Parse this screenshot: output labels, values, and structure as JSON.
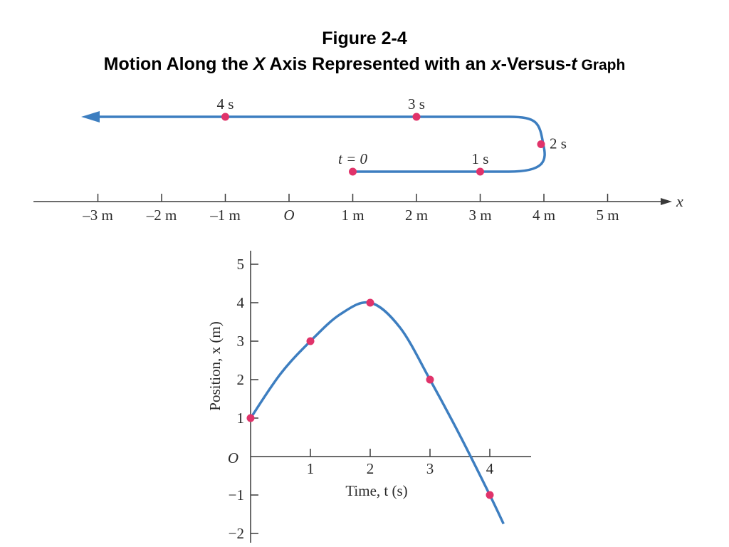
{
  "title": {
    "line1": "Figure 2-4",
    "line2_a": "Motion Along the ",
    "line2_b": "X",
    "line2_c": " Axis Represented with an ",
    "line2_d": "x",
    "line2_e": "-Versus-",
    "line2_f": "t",
    "line2_g": " Graph"
  },
  "colors": {
    "curve": "#3d7ec0",
    "point": "#e0336a",
    "axis": "#3a3a3a"
  },
  "chart_data": [
    {
      "type": "path-diagram",
      "axis_label": "x",
      "ticks": [
        {
          "v": -3,
          "label": "–3 m"
        },
        {
          "v": -2,
          "label": "–2 m"
        },
        {
          "v": -1,
          "label": "–1 m"
        },
        {
          "v": 0,
          "label": "O"
        },
        {
          "v": 1,
          "label": "1 m"
        },
        {
          "v": 2,
          "label": "2 m"
        },
        {
          "v": 3,
          "label": "3 m"
        },
        {
          "v": 4,
          "label": "4 m"
        },
        {
          "v": 5,
          "label": "5 m"
        }
      ],
      "points": [
        {
          "label": "t = 0",
          "x": 1
        },
        {
          "label": "1 s",
          "x": 3
        },
        {
          "label": "2 s",
          "x": 4
        },
        {
          "label": "3 s",
          "x": 2
        },
        {
          "label": "4 s",
          "x": -1
        }
      ],
      "xlim": [
        -4,
        6
      ]
    },
    {
      "type": "line",
      "xlabel": "Time, t (s)",
      "ylabel": "Position, x (m)",
      "origin_label": "O",
      "xticks": [
        1,
        2,
        3,
        4
      ],
      "yticks": [
        -2,
        -1,
        1,
        2,
        3,
        4,
        5
      ],
      "xlim": [
        0,
        4.7
      ],
      "ylim": [
        -2.2,
        5.4
      ],
      "points": [
        {
          "t": 0,
          "x": 1
        },
        {
          "t": 1,
          "x": 3
        },
        {
          "t": 2,
          "x": 4
        },
        {
          "t": 3,
          "x": 2
        },
        {
          "t": 4,
          "x": -1
        }
      ],
      "curve": [
        [
          0,
          1
        ],
        [
          0.5,
          2.15
        ],
        [
          1,
          3
        ],
        [
          1.5,
          3.7
        ],
        [
          2,
          4
        ],
        [
          2.5,
          3.35
        ],
        [
          3,
          2
        ],
        [
          3.5,
          0.55
        ],
        [
          4,
          -1
        ],
        [
          4.23,
          -1.75
        ]
      ]
    }
  ]
}
